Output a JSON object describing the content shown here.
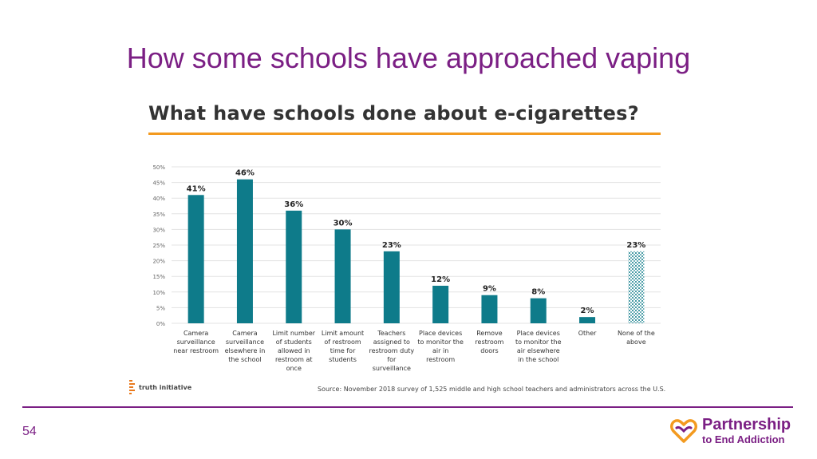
{
  "slide": {
    "title": "How some schools have approached vaping",
    "page_number": "54",
    "brand_line1": "Partnership",
    "brand_line2": "to End Addiction"
  },
  "chart_data": {
    "type": "bar",
    "title": "What have schools done about e-cigarettes?",
    "categories": [
      [
        "Camera",
        "surveillance",
        "near restroom"
      ],
      [
        "Camera",
        "surveillance",
        "elsewhere in",
        "the school"
      ],
      [
        "Limit number",
        "of students",
        "allowed in",
        "restroom at",
        "once"
      ],
      [
        "Limit amount",
        "of restroom",
        "time for",
        "students"
      ],
      [
        "Teachers",
        "assigned to",
        "restroom duty",
        "for",
        "surveillance"
      ],
      [
        "Place devices",
        "to monitor the",
        "air in",
        "restroom"
      ],
      [
        "Remove",
        "restroom",
        "doors"
      ],
      [
        "Place devices",
        "to monitor the",
        "air elsewhere",
        "in the school"
      ],
      [
        "Other"
      ],
      [
        "None of the",
        "above"
      ]
    ],
    "values": [
      41,
      46,
      36,
      30,
      23,
      12,
      9,
      8,
      2,
      23
    ],
    "value_labels": [
      "41%",
      "46%",
      "36%",
      "30%",
      "23%",
      "12%",
      "9%",
      "8%",
      "2%",
      "23%"
    ],
    "patterned": [
      false,
      false,
      false,
      false,
      false,
      false,
      false,
      false,
      false,
      true
    ],
    "ylim": [
      0,
      50
    ],
    "yticks": [
      "0%",
      "5%",
      "10%",
      "15%",
      "20%",
      "25%",
      "30%",
      "35%",
      "40%",
      "45%",
      "50%"
    ],
    "grid": true,
    "color": "#0e7b8a",
    "source": "Source: November 2018 survey of 1,525 middle and high school teachers and administrators across the U.S.",
    "logo_text": "truth initiative"
  },
  "colors": {
    "title": "#7b1f84",
    "accent_rule": "#f39a1f",
    "bar": "#0e7b8a"
  }
}
